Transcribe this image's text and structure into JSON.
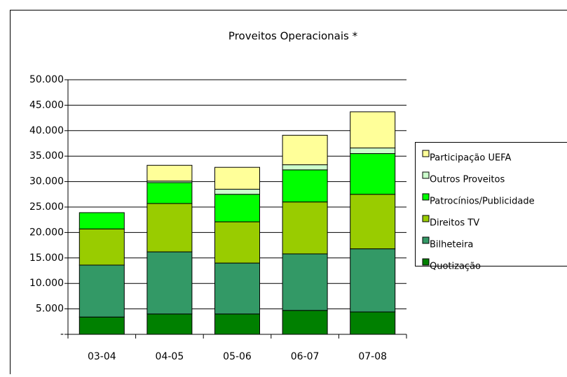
{
  "chart_data": {
    "type": "stacked_bar",
    "title": "Proveitos Operacionais *",
    "categories": [
      "03-04",
      "04-05",
      "05-06",
      "06-07",
      "07-08"
    ],
    "series": [
      {
        "name": "Quotização",
        "color": "#008000",
        "values": [
          3400,
          4000,
          4000,
          4700,
          4400
        ]
      },
      {
        "name": "Bilheteira",
        "color": "#339966",
        "values": [
          10200,
          12200,
          10000,
          11100,
          12400
        ]
      },
      {
        "name": "Direitos TV",
        "color": "#99cc00",
        "values": [
          7100,
          9500,
          8100,
          10200,
          10700
        ]
      },
      {
        "name": "Patrocínios/Publicidade",
        "color": "#00ff00",
        "values": [
          3200,
          4100,
          5400,
          6300,
          8000
        ]
      },
      {
        "name": "Outros Proveitos",
        "color": "#ccffcc",
        "values": [
          0,
          300,
          1000,
          1000,
          1100
        ]
      },
      {
        "name": "Participação UEFA",
        "color": "#ffff99",
        "values": [
          0,
          3100,
          4300,
          5800,
          7100
        ]
      }
    ],
    "ylim": [
      0,
      50000
    ],
    "yticks": [
      {
        "value": 0,
        "label": "-"
      },
      {
        "value": 5000,
        "label": "5.000"
      },
      {
        "value": 10000,
        "label": "10.000"
      },
      {
        "value": 15000,
        "label": "15.000"
      },
      {
        "value": 20000,
        "label": "20.000"
      },
      {
        "value": 25000,
        "label": "25.000"
      },
      {
        "value": 30000,
        "label": "30.000"
      },
      {
        "value": 35000,
        "label": "35.000"
      },
      {
        "value": 40000,
        "label": "40.000"
      },
      {
        "value": 45000,
        "label": "45.000"
      },
      {
        "value": 50000,
        "label": "50.000"
      }
    ],
    "grid": true,
    "legend": "right"
  }
}
